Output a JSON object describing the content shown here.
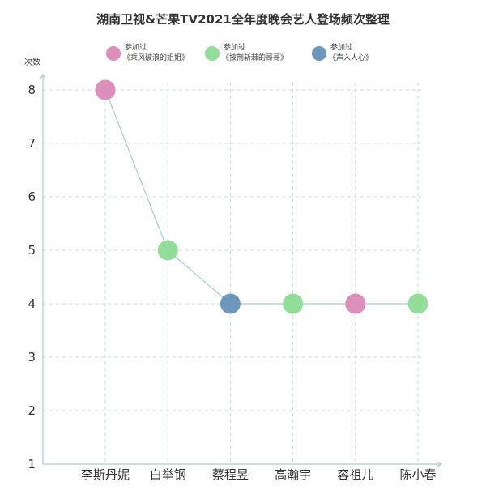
{
  "chart_data": {
    "type": "scatter",
    "title": "湖南卫视&芒果TV2021全年度晚会艺人登场频次整理",
    "ylabel": "次数",
    "xlabel": "",
    "categories": [
      "李斯丹妮",
      "白举钢",
      "蔡程昱",
      "高瀚宇",
      "容祖儿",
      "陈小春"
    ],
    "values": [
      8,
      5,
      4,
      4,
      4,
      4
    ],
    "point_groups": [
      0,
      1,
      2,
      1,
      0,
      1
    ],
    "ylim": [
      1,
      8
    ],
    "yticks": [
      "1",
      "2",
      "3",
      "4",
      "5",
      "6",
      "7",
      "8"
    ],
    "grid": true,
    "line_color": "#a9cdc9",
    "legend_position": "top",
    "legend": [
      {
        "line1": "参加过",
        "line2": "《乘风破浪的姐姐》",
        "color": "#dc8fbb"
      },
      {
        "line1": "参加过",
        "line2": "《披荆斩棘的哥哥》",
        "color": "#93dd9a"
      },
      {
        "line1": "参加过",
        "line2": "《声入人心》",
        "color": "#6d97bd"
      }
    ]
  }
}
